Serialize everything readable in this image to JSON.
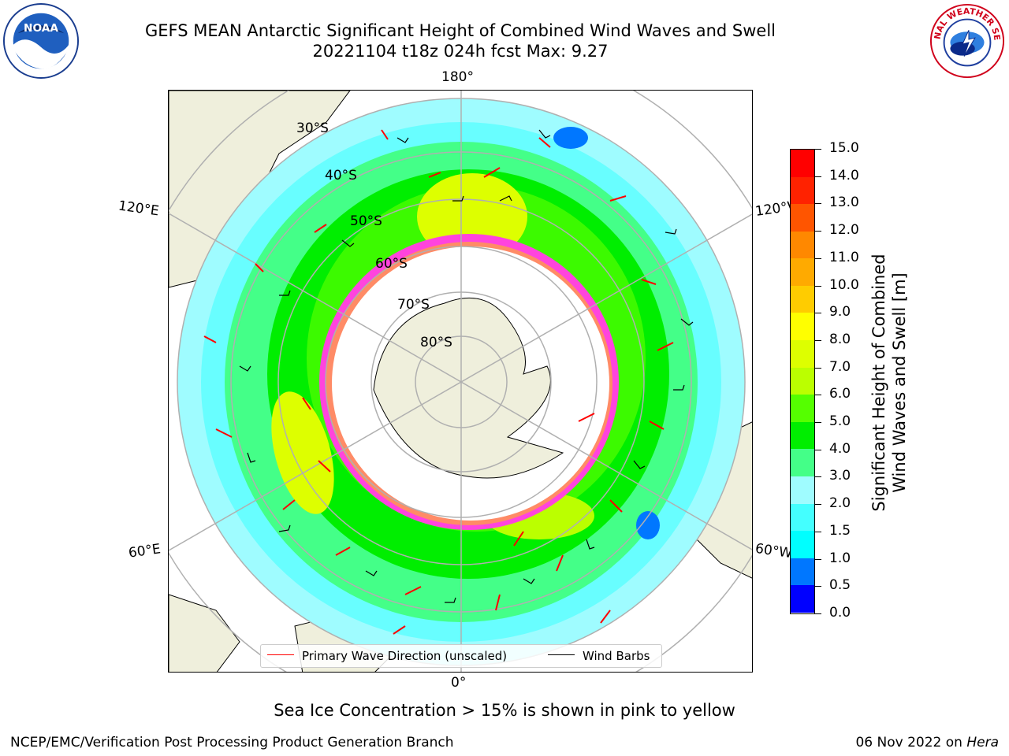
{
  "header": {
    "title_line1": "GEFS MEAN Antarctic Significant Height of Combined Wind Waves and Swell",
    "title_line2": "20221104 t18z 024h fcst   Max: 9.27"
  },
  "map": {
    "lon_labels": {
      "top": "180°",
      "bottom": "0°",
      "left_upper": "120°E",
      "left_lower": "60°E",
      "right_upper": "120°W",
      "right_lower": "60°W"
    },
    "lat_labels": [
      "30°S",
      "40°S",
      "50°S",
      "60°S",
      "70°S",
      "80°S"
    ],
    "colors": {
      "land": "#efefdc",
      "ocean_light": "#9ffcff",
      "ice": "#ffffff",
      "ice_edge": "#ff44dd"
    }
  },
  "legend": {
    "wave_label": "Primary Wave Direction (unscaled)",
    "barb_label": "Wind Barbs",
    "wave_color": "#ff0000",
    "barb_color": "#000000"
  },
  "colorbar": {
    "ticks": [
      "0.0",
      "0.5",
      "1.0",
      "1.5",
      "2.0",
      "3.0",
      "4.0",
      "5.0",
      "6.0",
      "7.0",
      "8.0",
      "9.0",
      "10.0",
      "11.0",
      "12.0",
      "13.0",
      "14.0",
      "15.0"
    ],
    "colors": [
      "#0000ff",
      "#0077ff",
      "#00ffff",
      "#44ffff",
      "#9ffcff",
      "#44ff88",
      "#00ee00",
      "#55ff00",
      "#bbff00",
      "#ddff00",
      "#ffff00",
      "#ffcc00",
      "#ffaa00",
      "#ff8800",
      "#ff5500",
      "#ff2200",
      "#ff0000"
    ],
    "label_line1": "Significant Height of Combined",
    "label_line2": "Wind Waves and Swell [m]"
  },
  "footer": {
    "subtitle": "Sea Ice Concentration > 15% is shown in pink to yellow",
    "credit": "NCEP/EMC/Verification Post Processing Product Generation Branch",
    "date": "06 Nov 2022 on",
    "host": "Hera"
  },
  "logos": {
    "noaa_text": "NOAA",
    "nws_text": "NATIONAL WEATHER SERVICE"
  }
}
